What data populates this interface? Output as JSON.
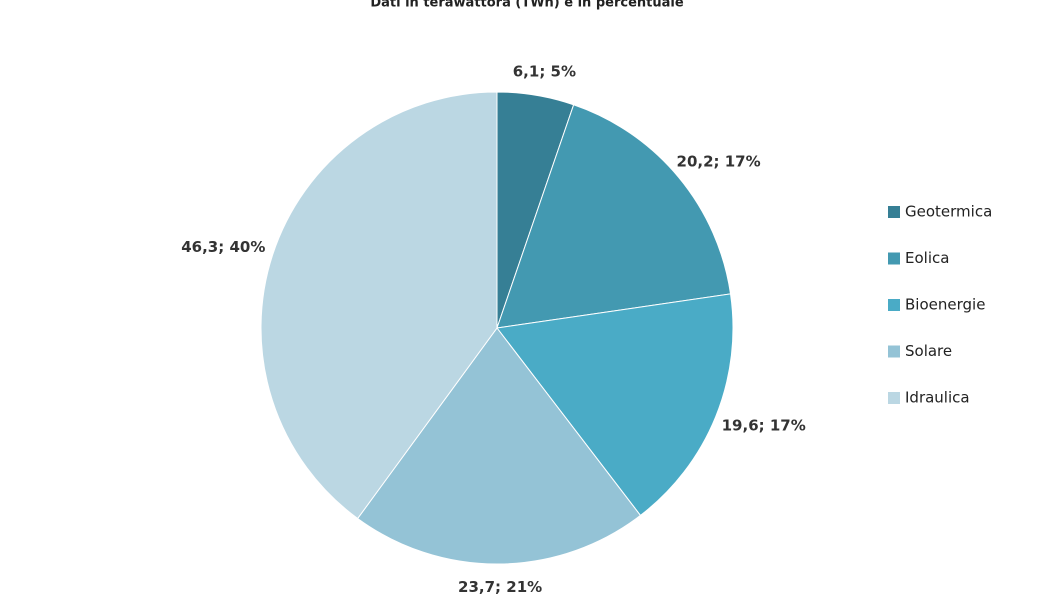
{
  "chart_data": {
    "type": "pie",
    "title": "Dati in terawattora (TWh) e in percentuale",
    "categories": [
      "Geotermica",
      "Eolica",
      "Bioenergie",
      "Solare",
      "Idraulica"
    ],
    "values": [
      6.1,
      20.2,
      19.6,
      23.7,
      46.3
    ],
    "value_labels": [
      "6,1; 5%",
      "20,2; 17%",
      "19,6; 17%",
      "23,7; 21%",
      "46,3; 40%"
    ],
    "colors": [
      "#367f95",
      "#4399b1",
      "#4aabc6",
      "#94c3d6",
      "#bbd7e3"
    ],
    "legend": "right"
  }
}
